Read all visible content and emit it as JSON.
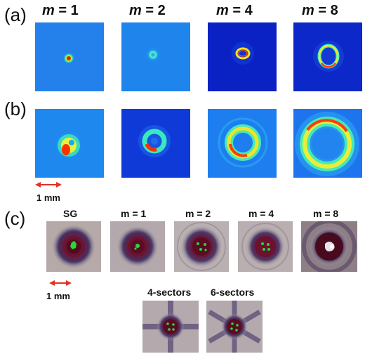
{
  "panel_labels": {
    "a": "(a)",
    "b": "(b)",
    "c": "(c)"
  },
  "top_headers": [
    {
      "var": "m",
      "value": " = 1"
    },
    {
      "var": "m",
      "value": " = 2"
    },
    {
      "var": "m",
      "value": " = 4"
    },
    {
      "var": "m",
      "value": " = 8"
    }
  ],
  "row_c_headers": [
    {
      "var": "",
      "value": "SG"
    },
    {
      "var": "m",
      "value": " = 1"
    },
    {
      "var": "m",
      "value": " = 2"
    },
    {
      "var": "m",
      "value": " = 4"
    },
    {
      "var": "m",
      "value": " = 8"
    }
  ],
  "sector_headers": [
    "4-sectors",
    "6-sectors"
  ],
  "scale_bars": {
    "b": "1 mm",
    "c": "1 mm"
  },
  "colors": {
    "bg_cyan": "#1f88ef",
    "bg_dark": "#0a24c8",
    "arrow": "#e53022",
    "mask_bg": "#b6aaa9",
    "mask_dark": "#6a1230",
    "spot": "#2fd33a"
  }
}
